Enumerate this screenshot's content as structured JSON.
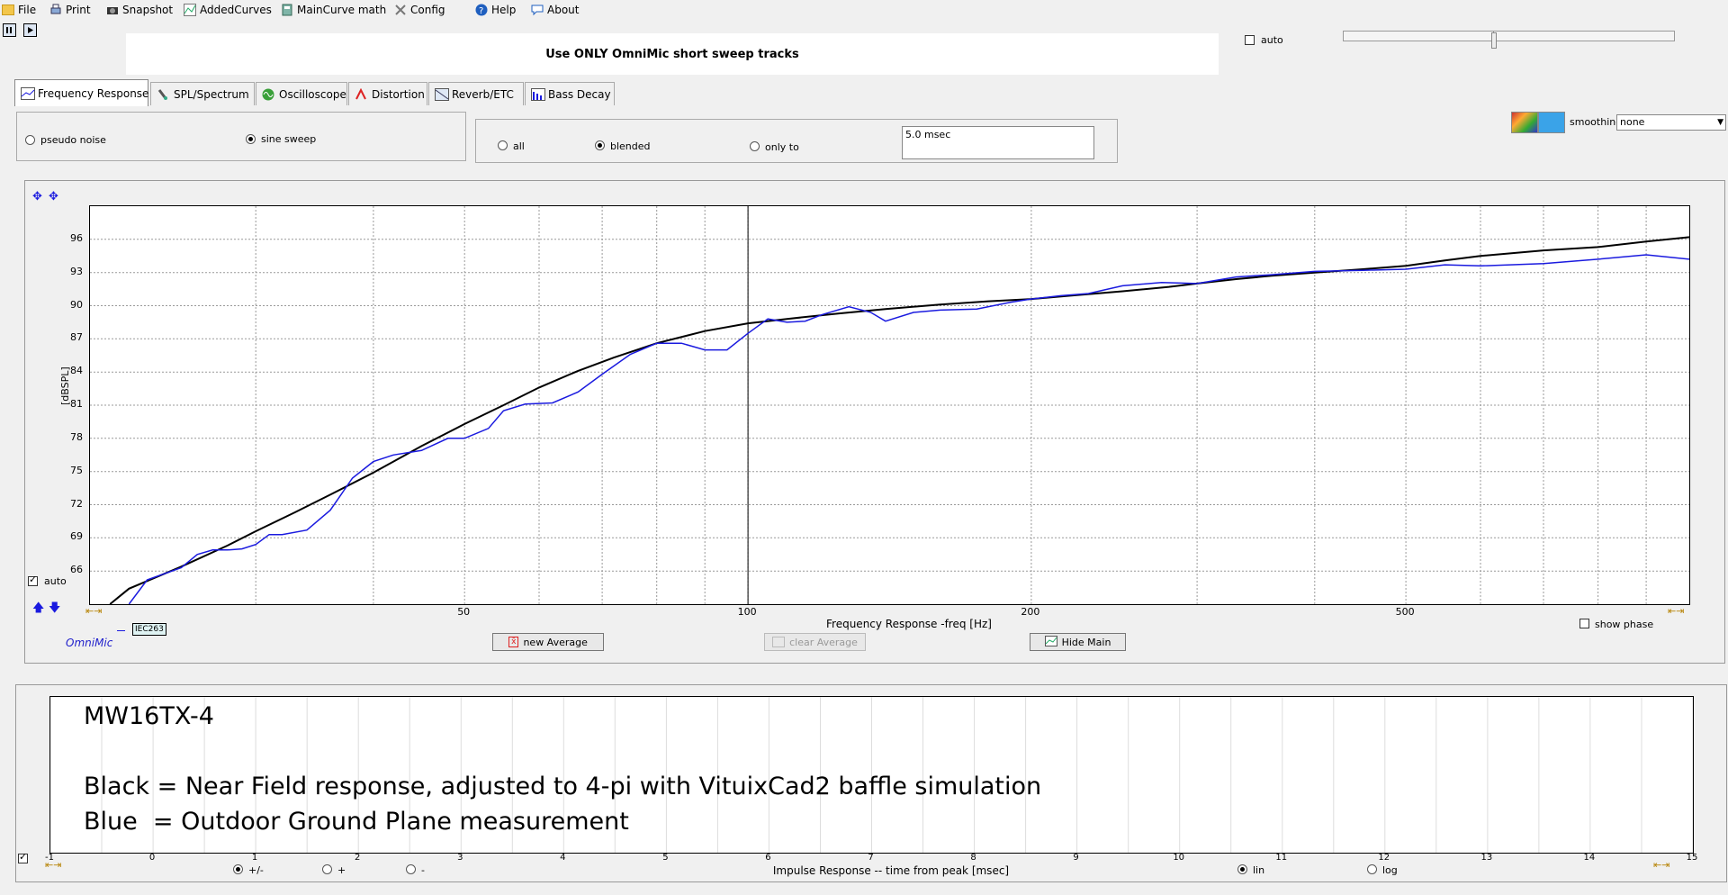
{
  "menu": [
    {
      "label": "File",
      "icon": "folder-icon"
    },
    {
      "label": "Print",
      "icon": "printer-icon"
    },
    {
      "label": "Snapshot",
      "icon": "camera-icon"
    },
    {
      "label": "AddedCurves",
      "icon": "curves-icon"
    },
    {
      "label": "MainCurve math",
      "icon": "calculator-icon"
    },
    {
      "label": "Config",
      "icon": "tools-icon"
    },
    {
      "label": "Help",
      "icon": "help-icon"
    },
    {
      "label": "About",
      "icon": "chat-icon"
    }
  ],
  "banner": "Use ONLY OmniMic short sweep tracks",
  "auto_top": {
    "label": "auto",
    "checked": false
  },
  "tabs": [
    {
      "label": "Frequency Response",
      "active": true
    },
    {
      "label": "SPL/Spectrum",
      "active": false
    },
    {
      "label": "Oscilloscope",
      "active": false
    },
    {
      "label": "Distortion",
      "active": false
    },
    {
      "label": "Reverb/ETC",
      "active": false
    },
    {
      "label": "Bass Decay",
      "active": false
    }
  ],
  "signal": {
    "pseudo_noise": "pseudo noise",
    "sine_sweep": "sine sweep",
    "selected": "sine sweep"
  },
  "window": {
    "all": "all",
    "blended": "blended",
    "only_to": "only to",
    "selected": "blended",
    "msec": "5.0 msec"
  },
  "smoothing": {
    "label": "smoothing",
    "value": "none"
  },
  "chart_auto": {
    "label": "auto",
    "checked": true
  },
  "legend_tag": "IEC263",
  "brand": "OmniMic",
  "buttons": {
    "new_average": "new Average",
    "clear_average": "clear Average",
    "hide_main": "Hide Main"
  },
  "show_phase": {
    "label": "show phase",
    "checked": false
  },
  "colors": {
    "near_field": "#000000",
    "ground_plane": "#1a1adf",
    "brand": "#2222cc"
  },
  "chart_data": {
    "type": "line",
    "title": "",
    "xlabel": "Frequency Response -freq [Hz]",
    "ylabel": "[dBSPL]",
    "xscale": "log",
    "xlim": [
      20,
      1000
    ],
    "ylim": [
      63,
      99
    ],
    "x_ticks": [
      50,
      100,
      200,
      500
    ],
    "y_ticks": [
      66,
      69,
      72,
      75,
      78,
      81,
      84,
      87,
      90,
      93,
      96
    ],
    "grid": true,
    "cursor_x": 100,
    "series": [
      {
        "name": "Black",
        "color": "#000000",
        "x": [
          21,
          22,
          25,
          28,
          30,
          33,
          36,
          40,
          45,
          50,
          55,
          60,
          66,
          72,
          80,
          90,
          100,
          110,
          125,
          140,
          160,
          180,
          200,
          220,
          250,
          280,
          300,
          330,
          360,
          400,
          450,
          500,
          550,
          600,
          700,
          800,
          900,
          1000
        ],
        "y": [
          63.0,
          64.4,
          66.4,
          68.3,
          69.6,
          71.3,
          72.9,
          74.9,
          77.3,
          79.3,
          81.0,
          82.6,
          84.1,
          85.3,
          86.6,
          87.7,
          88.4,
          88.8,
          89.3,
          89.7,
          90.1,
          90.4,
          90.6,
          90.9,
          91.3,
          91.7,
          92.0,
          92.4,
          92.7,
          93.0,
          93.3,
          93.6,
          94.1,
          94.5,
          95.0,
          95.3,
          95.8,
          96.2
        ]
      },
      {
        "name": "Blue",
        "color": "#1a1adf",
        "x": [
          22,
          23,
          25,
          26,
          27,
          28,
          29,
          30,
          31,
          32,
          34,
          36,
          38,
          40,
          42,
          45,
          48,
          50,
          53,
          55,
          58,
          62,
          66,
          70,
          75,
          80,
          85,
          90,
          95,
          100,
          105,
          110,
          115,
          120,
          128,
          135,
          140,
          150,
          160,
          175,
          190,
          200,
          215,
          230,
          250,
          275,
          300,
          330,
          360,
          400,
          450,
          500,
          550,
          600,
          700,
          800,
          900,
          1000
        ],
        "y": [
          63.0,
          65.2,
          66.3,
          67.5,
          67.9,
          67.9,
          68.0,
          68.4,
          69.3,
          69.3,
          69.7,
          71.5,
          74.4,
          75.9,
          76.5,
          76.9,
          78.0,
          78.0,
          78.9,
          80.5,
          81.1,
          81.2,
          82.2,
          83.8,
          85.6,
          86.6,
          86.6,
          86.0,
          86.0,
          87.5,
          88.8,
          88.5,
          88.6,
          89.2,
          89.9,
          89.4,
          88.6,
          89.4,
          89.6,
          89.7,
          90.3,
          90.6,
          90.9,
          91.1,
          91.8,
          92.1,
          92.0,
          92.6,
          92.8,
          93.1,
          93.2,
          93.3,
          93.7,
          93.6,
          93.8,
          94.2,
          94.6,
          94.2
        ]
      }
    ]
  },
  "note_lines": [
    "MW16TX-4",
    "",
    "Black = Near Field response, adjusted to 4-pi with VituixCad2 baffle simulation",
    "Blue  = Outdoor Ground Plane measurement"
  ],
  "impulse": {
    "xlabel": "Impulse Response  -- time from peak [msec]",
    "ticks": [
      "-1",
      "0",
      "1",
      "2",
      "3",
      "4",
      "5",
      "6",
      "7",
      "8",
      "9",
      "10",
      "11",
      "12",
      "13",
      "14",
      "15"
    ],
    "polarity": {
      "both": "+/-",
      "plus": "+",
      "minus": "-",
      "selected": "+/-"
    },
    "scale": {
      "lin": "lin",
      "log": "log",
      "selected": "lin"
    },
    "checked": true
  }
}
